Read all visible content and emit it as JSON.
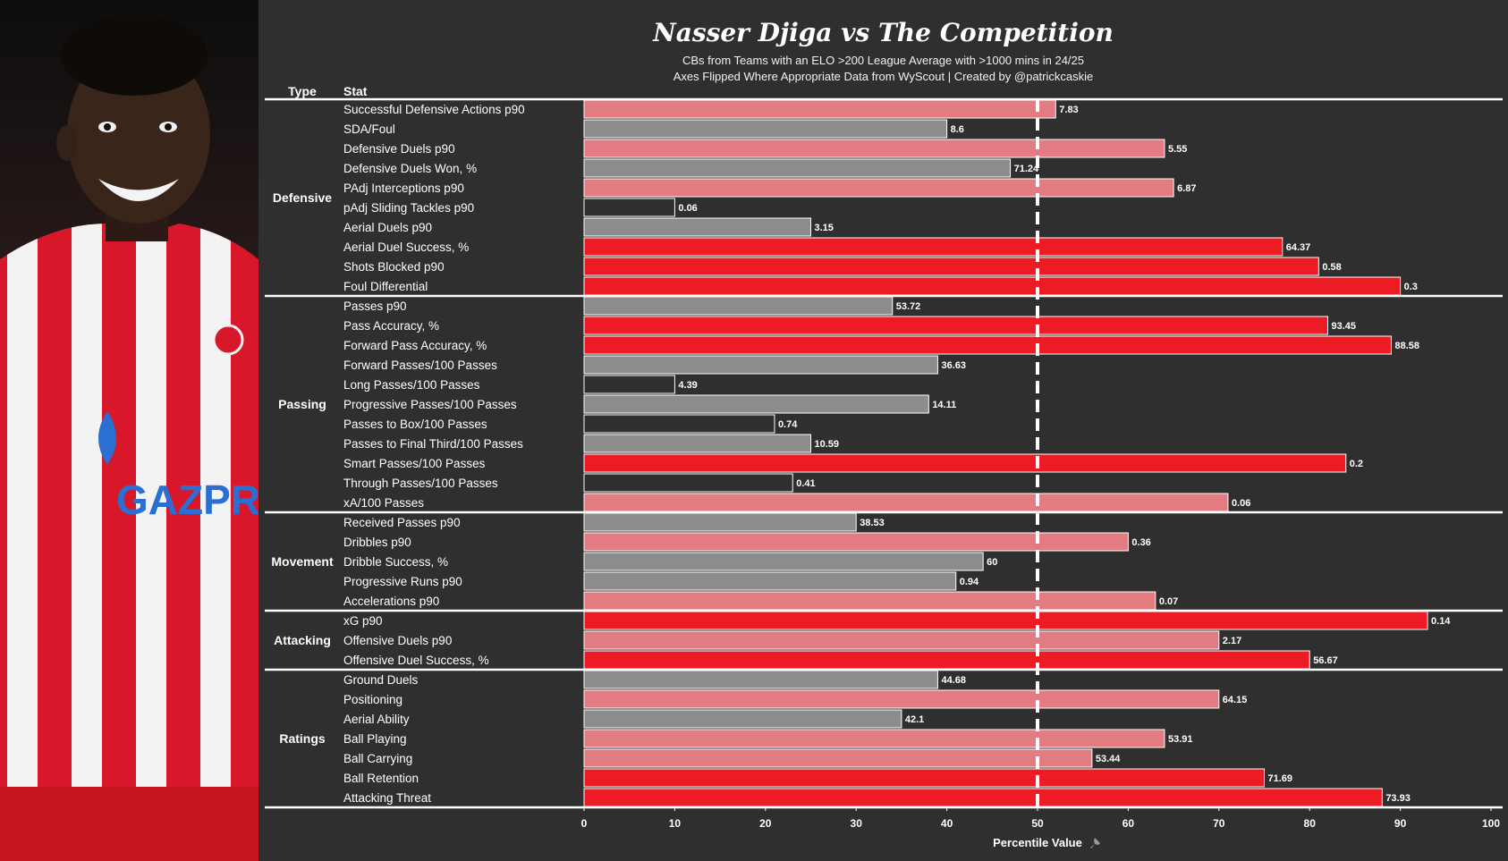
{
  "header": {
    "title": "Nasser Djiga vs The Competition",
    "subtitle_line1": "CBs from Teams with an ELO >200 League Average with >1000 mins in 24/25",
    "subtitle_line2": "Axes Flipped Where Appropriate  Data from WyScout | Created by @patrickcaskie"
  },
  "colors": {
    "background": "#2f2f2f",
    "high": "#ed1c24",
    "mid_high": "#e27c82",
    "mid_low": "#8c8c8c",
    "low": "#2f2f2f",
    "bar_outline": "#ffffff"
  },
  "chart_data": {
    "type": "bar",
    "orientation": "horizontal",
    "x_axis": {
      "label": "Percentile Value",
      "range": [
        0,
        100
      ],
      "ticks": [
        0,
        10,
        20,
        30,
        40,
        50,
        60,
        70,
        80,
        90,
        100
      ]
    },
    "reference_line": {
      "x": 50,
      "style": "dashed"
    },
    "columns": {
      "type_header": "Type",
      "stat_header": "Stat"
    },
    "groups": [
      {
        "type": "Defensive",
        "stats": [
          {
            "name": "Successful Defensive Actions p90",
            "percentile": 52,
            "value": "7.83",
            "band": "mid_high"
          },
          {
            "name": "SDA/Foul",
            "percentile": 40,
            "value": "8.6",
            "band": "mid_low"
          },
          {
            "name": "Defensive Duels p90",
            "percentile": 64,
            "value": "5.55",
            "band": "mid_high"
          },
          {
            "name": "Defensive Duels Won, %",
            "percentile": 47,
            "value": "71.24",
            "band": "mid_low"
          },
          {
            "name": "PAdj Interceptions p90",
            "percentile": 65,
            "value": "6.87",
            "band": "mid_high"
          },
          {
            "name": "pAdj Sliding Tackles p90",
            "percentile": 10,
            "value": "0.06",
            "band": "low"
          },
          {
            "name": "Aerial Duels p90",
            "percentile": 25,
            "value": "3.15",
            "band": "mid_low"
          },
          {
            "name": "Aerial Duel Success, %",
            "percentile": 77,
            "value": "64.37",
            "band": "high"
          },
          {
            "name": "Shots Blocked p90",
            "percentile": 81,
            "value": "0.58",
            "band": "high"
          },
          {
            "name": "Foul Differential",
            "percentile": 90,
            "value": "0.3",
            "band": "high"
          }
        ]
      },
      {
        "type": "Passing",
        "stats": [
          {
            "name": "Passes p90",
            "percentile": 34,
            "value": "53.72",
            "band": "mid_low"
          },
          {
            "name": "Pass Accuracy, %",
            "percentile": 82,
            "value": "93.45",
            "band": "high"
          },
          {
            "name": "Forward Pass Accuracy, %",
            "percentile": 89,
            "value": "88.58",
            "band": "high"
          },
          {
            "name": "Forward Passes/100 Passes",
            "percentile": 39,
            "value": "36.63",
            "band": "mid_low"
          },
          {
            "name": "Long Passes/100 Passes",
            "percentile": 10,
            "value": "4.39",
            "band": "low"
          },
          {
            "name": "Progressive Passes/100 Passes",
            "percentile": 38,
            "value": "14.11",
            "band": "mid_low"
          },
          {
            "name": "Passes to Box/100 Passes",
            "percentile": 21,
            "value": "0.74",
            "band": "low"
          },
          {
            "name": "Passes to Final Third/100 Passes",
            "percentile": 25,
            "value": "10.59",
            "band": "mid_low"
          },
          {
            "name": "Smart Passes/100 Passes",
            "percentile": 84,
            "value": "0.2",
            "band": "high"
          },
          {
            "name": "Through Passes/100 Passes",
            "percentile": 23,
            "value": "0.41",
            "band": "low"
          },
          {
            "name": "xA/100 Passes",
            "percentile": 71,
            "value": "0.06",
            "band": "mid_high"
          }
        ]
      },
      {
        "type": "Movement",
        "stats": [
          {
            "name": "Received Passes p90",
            "percentile": 30,
            "value": "38.53",
            "band": "mid_low"
          },
          {
            "name": "Dribbles p90",
            "percentile": 60,
            "value": "0.36",
            "band": "mid_high"
          },
          {
            "name": "Dribble Success, %",
            "percentile": 44,
            "value": "60",
            "band": "mid_low"
          },
          {
            "name": "Progressive Runs p90",
            "percentile": 41,
            "value": "0.94",
            "band": "mid_low"
          },
          {
            "name": "Accelerations p90",
            "percentile": 63,
            "value": "0.07",
            "band": "mid_high"
          }
        ]
      },
      {
        "type": "Attacking",
        "stats": [
          {
            "name": "xG p90",
            "percentile": 93,
            "value": "0.14",
            "band": "high"
          },
          {
            "name": "Offensive Duels p90",
            "percentile": 70,
            "value": "2.17",
            "band": "mid_high"
          },
          {
            "name": "Offensive Duel Success, %",
            "percentile": 80,
            "value": "56.67",
            "band": "high"
          }
        ]
      },
      {
        "type": "Ratings",
        "stats": [
          {
            "name": "Ground Duels",
            "percentile": 39,
            "value": "44.68",
            "band": "mid_low"
          },
          {
            "name": "Positioning",
            "percentile": 70,
            "value": "64.15",
            "band": "mid_high"
          },
          {
            "name": "Aerial Ability",
            "percentile": 35,
            "value": "42.1",
            "band": "mid_low"
          },
          {
            "name": "Ball Playing",
            "percentile": 64,
            "value": "53.91",
            "band": "mid_high"
          },
          {
            "name": "Ball Carrying",
            "percentile": 56,
            "value": "53.44",
            "band": "mid_high"
          },
          {
            "name": "Ball Retention",
            "percentile": 75,
            "value": "71.69",
            "band": "high"
          },
          {
            "name": "Attacking Threat",
            "percentile": 88,
            "value": "73.93",
            "band": "high"
          }
        ]
      }
    ]
  }
}
